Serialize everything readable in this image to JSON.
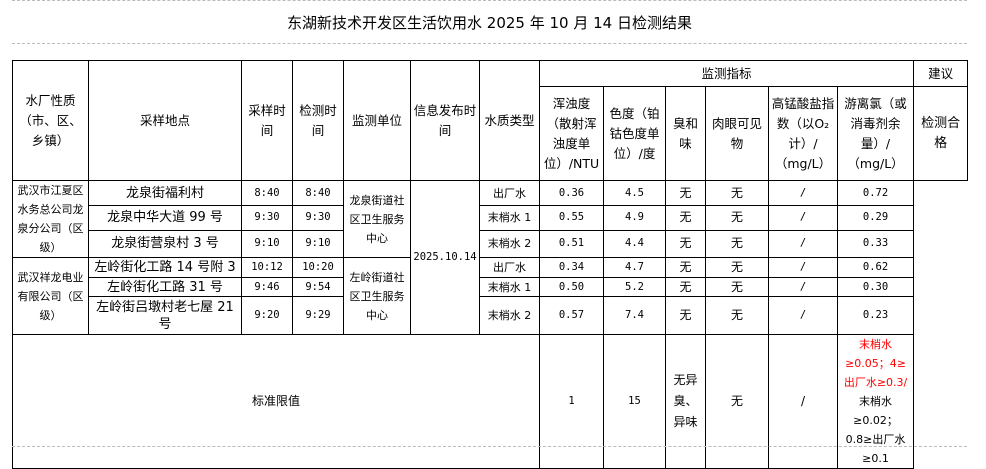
{
  "title": "东湖新技术开发区生活饮用水 2025 年 10 月 14 日检测结果",
  "headers": {
    "plant": "水厂性质（市、区、乡镇）",
    "location": "采样地点",
    "sample_time": "采样时间",
    "test_time": "检测时间",
    "unit": "监测单位",
    "publish_time": "信息发布时间",
    "water_type": "水质类型",
    "indicators": "监测指标",
    "advice": "建议",
    "turbidity": "浑浊度（散射浑浊度单位）/NTU",
    "color": "色度（铂钴色度单位）/度",
    "odor": "臭和味",
    "visible": "肉眼可见物",
    "permanganate": "高锰酸盐指数（以O₂计）/（mg/L）",
    "chlorine": "游离氯（或消毒剂余量）/（mg/L）"
  },
  "groups": [
    {
      "plant": "武汉市江夏区水务总公司龙泉分公司（区级）",
      "unit": "龙泉街道社区卫生服务中心"
    },
    {
      "plant": "武汉祥龙电业有限公司（区级）",
      "unit": "左岭街道社区卫生服务中心"
    }
  ],
  "publish_date": "2025.10.14",
  "advice": "检测合格",
  "rows": [
    {
      "location": "龙泉街福利村",
      "sample": "8:40",
      "test": "8:40",
      "type": "出厂水",
      "turbidity": "0.36",
      "color": "4.5",
      "odor": "无",
      "visible": "无",
      "permanganate": "/",
      "chlorine": "0.72"
    },
    {
      "location": "龙泉中华大道 99 号",
      "sample": "9:30",
      "test": "9:30",
      "type": "末梢水 1",
      "turbidity": "0.55",
      "color": "4.9",
      "odor": "无",
      "visible": "无",
      "permanganate": "/",
      "chlorine": "0.29"
    },
    {
      "location": "龙泉街营泉村 3 号",
      "sample": "9:10",
      "test": "9:10",
      "type": "末梢水 2",
      "turbidity": "0.51",
      "color": "4.4",
      "odor": "无",
      "visible": "无",
      "permanganate": "/",
      "chlorine": "0.33"
    },
    {
      "location": "左岭街化工路 14 号附 3",
      "sample": "10:12",
      "test": "10:20",
      "type": "出厂水",
      "turbidity": "0.34",
      "color": "4.7",
      "odor": "无",
      "visible": "无",
      "permanganate": "/",
      "chlorine": "0.62"
    },
    {
      "location": "左岭街化工路 31 号",
      "sample": "9:46",
      "test": "9:54",
      "type": "末梢水 1",
      "turbidity": "0.50",
      "color": "5.2",
      "odor": "无",
      "visible": "无",
      "permanganate": "/",
      "chlorine": "0.30"
    },
    {
      "location": "左岭街吕墩村老七屋 21 号",
      "sample": "9:20",
      "test": "9:29",
      "type": "末梢水 2",
      "turbidity": "0.57",
      "color": "7.4",
      "odor": "无",
      "visible": "无",
      "permanganate": "/",
      "chlorine": "0.23"
    }
  ],
  "standard": {
    "label": "标准限值",
    "turbidity": "1",
    "color": "15",
    "odor": "无异臭、异味",
    "visible": "无",
    "permanganate": "/",
    "chlorine_red": "末梢水≥0.05；4≥出厂水≥0.3/",
    "chlorine_black": "末梢水≥0.02；0.8≥出厂水≥0.1"
  },
  "colors": {
    "highlight": "#ff0000"
  }
}
